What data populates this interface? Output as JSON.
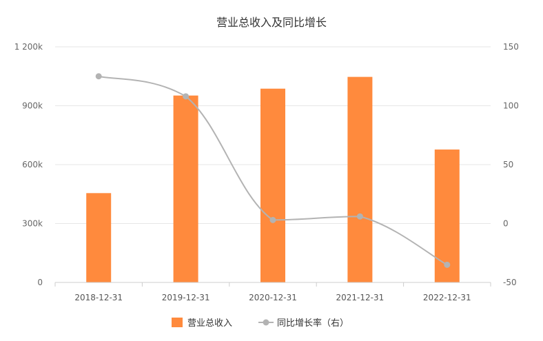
{
  "chart_data": {
    "type": "bar",
    "title": "营业总收入及同比增长",
    "categories": [
      "2018-12-31",
      "2019-12-31",
      "2020-12-31",
      "2021-12-31",
      "2022-12-31"
    ],
    "series": [
      {
        "name": "营业总收入",
        "type": "bar",
        "axis": "left",
        "values": [
          455000,
          952000,
          987000,
          1047000,
          677000
        ],
        "color": "#ff8a3d"
      },
      {
        "name": "同比增长率（右）",
        "type": "line",
        "axis": "right",
        "values": [
          125,
          108,
          3,
          6,
          -35
        ],
        "color": "#b3b3b3"
      }
    ],
    "y_left": {
      "ylim": [
        0,
        1200000
      ],
      "ticks": [
        0,
        300000,
        600000,
        900000,
        1200000
      ],
      "tick_labels": [
        "0",
        "300k",
        "600k",
        "900k",
        "1 200k"
      ]
    },
    "y_right": {
      "ylim": [
        -50,
        150
      ],
      "ticks": [
        -50,
        0,
        50,
        100,
        150
      ],
      "tick_labels": [
        "-50",
        "0",
        "50",
        "100",
        "150"
      ]
    },
    "grid": true,
    "legend_position": "bottom"
  }
}
